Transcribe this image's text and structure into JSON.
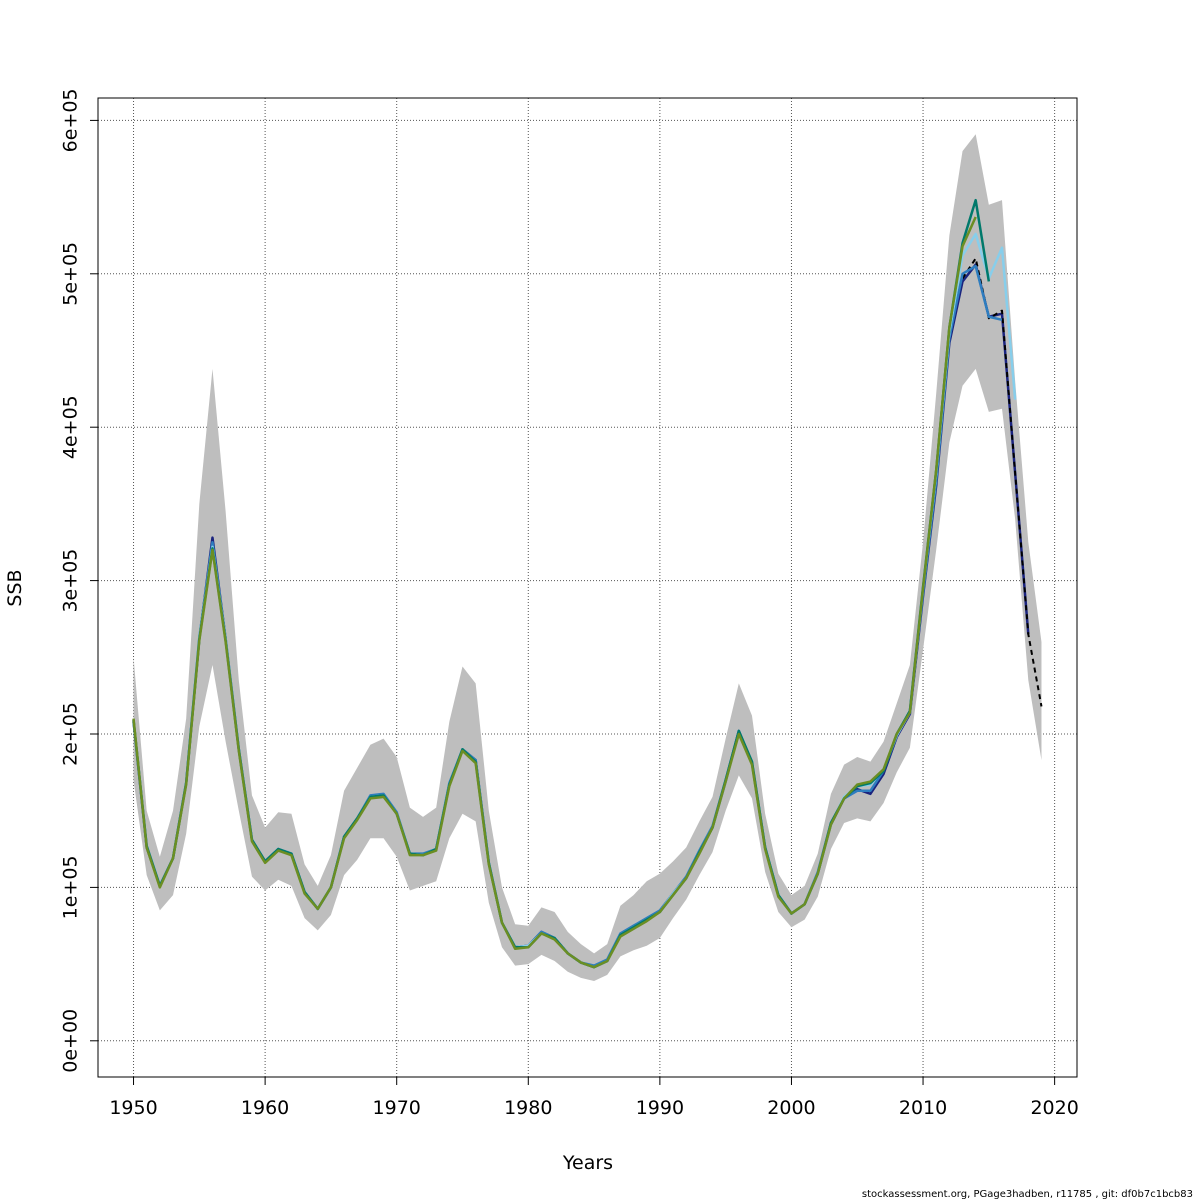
{
  "chart_data": {
    "type": "line",
    "xlabel": "Years",
    "ylabel": "SSB",
    "xlim": [
      1947.3,
      2021.7
    ],
    "ylim": [
      -23600,
      614600
    ],
    "xticks": [
      1950,
      1960,
      1970,
      1980,
      1990,
      2000,
      2010,
      2020
    ],
    "yticks": [
      0,
      100000,
      200000,
      300000,
      400000,
      500000,
      600000
    ],
    "ytick_labels": [
      "0e+00",
      "1e+05",
      "2e+05",
      "3e+05",
      "4e+05",
      "5e+05",
      "6e+05"
    ],
    "xtick_labels": [
      "1950",
      "1960",
      "1970",
      "1980",
      "1990",
      "2000",
      "2010",
      "2020"
    ],
    "grid": true,
    "band_color": "#bebebe",
    "confidence_band": {
      "years": [
        1950,
        1951,
        1952,
        1953,
        1954,
        1955,
        1956,
        1957,
        1958,
        1959,
        1960,
        1961,
        1962,
        1963,
        1964,
        1965,
        1966,
        1967,
        1968,
        1969,
        1970,
        1971,
        1972,
        1973,
        1974,
        1975,
        1976,
        1977,
        1978,
        1979,
        1980,
        1981,
        1982,
        1983,
        1984,
        1985,
        1986,
        1987,
        1988,
        1989,
        1990,
        1991,
        1992,
        1993,
        1994,
        1995,
        1996,
        1997,
        1998,
        1999,
        2000,
        2001,
        2002,
        2003,
        2004,
        2005,
        2006,
        2007,
        2008,
        2009,
        2010,
        2011,
        2012,
        2013,
        2014,
        2015,
        2016,
        2017,
        2018,
        2019
      ],
      "lower": [
        170000,
        108000,
        85000,
        95000,
        135000,
        205000,
        245000,
        195000,
        150000,
        107000,
        98000,
        105000,
        101000,
        80000,
        72000,
        82000,
        108000,
        118000,
        132000,
        132000,
        120000,
        98000,
        101000,
        104000,
        132000,
        148000,
        143000,
        90000,
        61000,
        49000,
        50000,
        56000,
        52000,
        45000,
        41000,
        39000,
        43000,
        55000,
        59000,
        62000,
        67000,
        80000,
        92000,
        108000,
        123000,
        150000,
        173000,
        158000,
        110000,
        84000,
        74000,
        79000,
        94000,
        125000,
        142000,
        145000,
        143000,
        155000,
        175000,
        191000,
        255000,
        320000,
        390000,
        427000,
        438000,
        410000,
        412000,
        340000,
        235000,
        183000
      ],
      "upper": [
        250000,
        150000,
        120000,
        150000,
        210000,
        350000,
        438000,
        345000,
        235000,
        160000,
        139000,
        149000,
        148000,
        115000,
        101000,
        121000,
        163000,
        178000,
        193000,
        197000,
        185000,
        152000,
        146000,
        152000,
        208000,
        244000,
        233000,
        150000,
        100000,
        76000,
        75000,
        87000,
        84000,
        71000,
        63000,
        57000,
        63000,
        88000,
        95000,
        104000,
        109000,
        117000,
        126000,
        143000,
        159000,
        197000,
        233000,
        212000,
        148000,
        109000,
        95000,
        101000,
        122000,
        161000,
        180000,
        185000,
        182000,
        195000,
        220000,
        245000,
        325000,
        422000,
        525000,
        580000,
        591000,
        545000,
        548000,
        430000,
        325000,
        260000
      ]
    },
    "series": [
      {
        "color": "#1a237e",
        "years": [
          1950,
          1951,
          1952,
          1953,
          1954,
          1955,
          1956,
          1957,
          1958,
          1959,
          1960,
          1961,
          1962,
          1963,
          1964,
          1965,
          1966,
          1967,
          1968,
          1969,
          1970,
          1971,
          1972,
          1973,
          1974,
          1975,
          1976,
          1977,
          1978,
          1979,
          1980,
          1981,
          1982,
          1983,
          1984,
          1985,
          1986,
          1987,
          1988,
          1989,
          1990,
          1991,
          1992,
          1993,
          1994,
          1995,
          1996,
          1997,
          1998,
          1999,
          2000,
          2001,
          2002,
          2003,
          2004,
          2005,
          2006,
          2007,
          2008,
          2009,
          2010,
          2011,
          2012,
          2013,
          2014,
          2015,
          2016,
          2017,
          2018
        ],
        "values": [
          208000,
          126000,
          101000,
          119000,
          168000,
          262000,
          328000,
          262000,
          190000,
          131000,
          117000,
          125000,
          122000,
          97000,
          86000,
          100000,
          133000,
          145000,
          159000,
          160000,
          148000,
          122000,
          121000,
          125000,
          167000,
          190000,
          183000,
          116000,
          77000,
          61000,
          62000,
          71000,
          67000,
          57000,
          51000,
          48000,
          52000,
          69000,
          74000,
          79000,
          84000,
          96000,
          106000,
          123000,
          139000,
          169000,
          202000,
          181000,
          126000,
          95000,
          83000,
          89000,
          109000,
          141000,
          158000,
          164000,
          161000,
          174000,
          198000,
          213000,
          290000,
          362000,
          455000,
          495000,
          506000,
          472000,
          474000,
          370000,
          265000
        ]
      },
      {
        "color": "#000000",
        "dashed": true,
        "years": [
          2013,
          2014,
          2015,
          2016,
          2017,
          2018,
          2019
        ],
        "values": [
          497000,
          510000,
          471000,
          476000,
          370000,
          265000,
          218000
        ]
      },
      {
        "color": "#2e7dbf",
        "years": [
          1950,
          1951,
          1952,
          1953,
          1954,
          1955,
          1956,
          1957,
          1958,
          1959,
          1960,
          1961,
          1962,
          1963,
          1964,
          1965,
          1966,
          1967,
          1968,
          1969,
          1970,
          1971,
          1972,
          1973,
          1974,
          1975,
          1976,
          1977,
          1978,
          1979,
          1980,
          1981,
          1982,
          1983,
          1984,
          1985,
          1986,
          1987,
          1988,
          1989,
          1990,
          1991,
          1992,
          1993,
          1994,
          1995,
          1996,
          1997,
          1998,
          1999,
          2000,
          2001,
          2002,
          2003,
          2004,
          2005,
          2006,
          2007,
          2008,
          2009,
          2010,
          2011,
          2012,
          2013,
          2014,
          2015,
          2016
        ],
        "values": [
          209000,
          127000,
          101000,
          119000,
          168000,
          263000,
          325000,
          262000,
          190000,
          131000,
          117000,
          125000,
          122000,
          97000,
          86000,
          100000,
          133000,
          145000,
          160000,
          161000,
          149000,
          122000,
          122000,
          125000,
          168000,
          190000,
          183000,
          116000,
          77000,
          61000,
          62000,
          71000,
          67000,
          57000,
          51000,
          49000,
          53000,
          70000,
          75000,
          80000,
          85000,
          96000,
          107000,
          124000,
          140000,
          170000,
          202000,
          181000,
          126000,
          95000,
          83000,
          89000,
          110000,
          142000,
          158000,
          163000,
          163000,
          176000,
          199000,
          215000,
          292000,
          365000,
          458000,
          500000,
          505000,
          472000,
          470000
        ]
      },
      {
        "color": "#87ceeb",
        "years": [
          1950,
          1951,
          1952,
          1953,
          1954,
          1955,
          1956,
          1957,
          1958,
          1959,
          1960,
          1961,
          1962,
          1963,
          1964,
          1965,
          1966,
          1967,
          1968,
          1969,
          1970,
          1971,
          1972,
          1973,
          1974,
          1975,
          1976,
          1977,
          1978,
          1979,
          1980,
          1981,
          1982,
          1983,
          1984,
          1985,
          1986,
          1987,
          1988,
          1989,
          1990,
          1991,
          1992,
          1993,
          1994,
          1995,
          1996,
          1997,
          1998,
          1999,
          2000,
          2001,
          2002,
          2003,
          2004,
          2005,
          2006,
          2007,
          2008,
          2009,
          2010,
          2011,
          2012,
          2013,
          2014,
          2015,
          2016,
          2017
        ],
        "values": [
          209000,
          127000,
          101000,
          119000,
          168000,
          263000,
          322000,
          262000,
          190000,
          131000,
          117000,
          125000,
          122000,
          97000,
          86000,
          100000,
          133000,
          145000,
          159000,
          160000,
          148000,
          122000,
          121000,
          125000,
          167000,
          190000,
          182000,
          116000,
          77000,
          61000,
          62000,
          70000,
          67000,
          57000,
          51000,
          48000,
          52000,
          69000,
          74000,
          79000,
          84000,
          96000,
          106000,
          123000,
          139000,
          169000,
          201000,
          181000,
          126000,
          95000,
          83000,
          89000,
          109000,
          141000,
          159000,
          166000,
          167000,
          177000,
          199000,
          214000,
          295000,
          370000,
          462000,
          512000,
          526000,
          497000,
          517000,
          418000
        ]
      },
      {
        "color": "#00796b",
        "years": [
          1950,
          1951,
          1952,
          1953,
          1954,
          1955,
          1956,
          1957,
          1958,
          1959,
          1960,
          1961,
          1962,
          1963,
          1964,
          1965,
          1966,
          1967,
          1968,
          1969,
          1970,
          1971,
          1972,
          1973,
          1974,
          1975,
          1976,
          1977,
          1978,
          1979,
          1980,
          1981,
          1982,
          1983,
          1984,
          1985,
          1986,
          1987,
          1988,
          1989,
          1990,
          1991,
          1992,
          1993,
          1994,
          1995,
          1996,
          1997,
          1998,
          1999,
          2000,
          2001,
          2002,
          2003,
          2004,
          2005,
          2006,
          2007,
          2008,
          2009,
          2010,
          2011,
          2012,
          2013,
          2014,
          2015
        ],
        "values": [
          209000,
          127000,
          101000,
          119000,
          168000,
          262000,
          321000,
          261000,
          190000,
          131000,
          117000,
          125000,
          122000,
          97000,
          86000,
          100000,
          133000,
          145000,
          159000,
          160000,
          148000,
          122000,
          121000,
          125000,
          167000,
          190000,
          182000,
          116000,
          77000,
          61000,
          61000,
          70000,
          67000,
          57000,
          51000,
          48000,
          52000,
          69000,
          74000,
          79000,
          84000,
          95000,
          106000,
          123000,
          139000,
          170000,
          202000,
          182000,
          126000,
          95000,
          83000,
          89000,
          109000,
          142000,
          158000,
          166000,
          168000,
          176000,
          200000,
          215000,
          296000,
          372000,
          465000,
          520000,
          548000,
          495000
        ]
      },
      {
        "color": "#6b8e23",
        "years": [
          1950,
          1951,
          1952,
          1953,
          1954,
          1955,
          1956,
          1957,
          1958,
          1959,
          1960,
          1961,
          1962,
          1963,
          1964,
          1965,
          1966,
          1967,
          1968,
          1969,
          1970,
          1971,
          1972,
          1973,
          1974,
          1975,
          1976,
          1977,
          1978,
          1979,
          1980,
          1981,
          1982,
          1983,
          1984,
          1985,
          1986,
          1987,
          1988,
          1989,
          1990,
          1991,
          1992,
          1993,
          1994,
          1995,
          1996,
          1997,
          1998,
          1999,
          2000,
          2001,
          2002,
          2003,
          2004,
          2005,
          2006,
          2007,
          2008,
          2009,
          2010,
          2011,
          2012,
          2013,
          2014
        ],
        "values": [
          210000,
          126000,
          100000,
          119000,
          167000,
          261000,
          320000,
          260000,
          189000,
          130000,
          116000,
          124000,
          121000,
          96000,
          86000,
          100000,
          132000,
          144000,
          158000,
          159000,
          148000,
          121000,
          121000,
          124000,
          166000,
          189000,
          181000,
          115000,
          77000,
          60000,
          61000,
          70000,
          66000,
          57000,
          51000,
          48000,
          52000,
          68000,
          73000,
          78000,
          84000,
          95000,
          106000,
          122000,
          139000,
          169000,
          200000,
          180000,
          125000,
          94000,
          83000,
          89000,
          109000,
          141000,
          158000,
          167000,
          169000,
          177000,
          200000,
          214000,
          295000,
          372000,
          465000,
          518000,
          537000
        ]
      }
    ]
  },
  "footer": {
    "text": "stockassessment.org, PGage3hadben, r11785 , git: df0b7c1bcb83"
  }
}
